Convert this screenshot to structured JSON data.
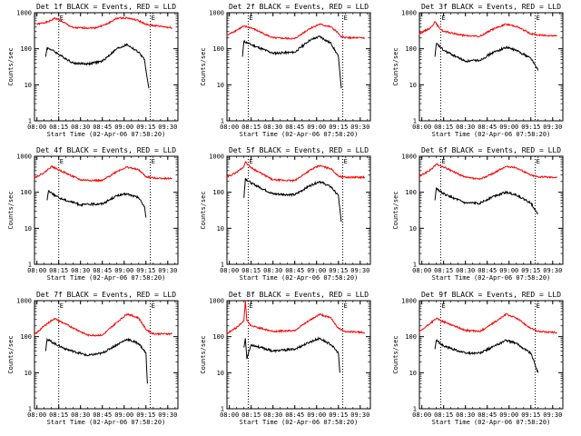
{
  "chart_data": [
    {
      "type": "line",
      "title": "Det 1f BLACK = Events, RED = LLD",
      "xlabel": "Start Time (02-Apr-06 07:58:20)",
      "ylabel": "Counts/sec",
      "xticks": [
        "08:00",
        "08:15",
        "08:30",
        "08:45",
        "09:00",
        "09:15",
        "09:30"
      ],
      "yticks": [
        "1",
        "10",
        "100",
        "1000"
      ],
      "yscale": "log",
      "ylim": [
        1,
        1000
      ],
      "xlim": [
        "07:58:20",
        "09:37"
      ],
      "marker_labels": [
        "E",
        "E"
      ],
      "markers": [
        "08:15",
        "09:18"
      ],
      "series": [
        {
          "color": "#ff0000",
          "x": [
            "08:00",
            "08:08",
            "08:12",
            "08:15",
            "08:25",
            "08:40",
            "08:48",
            "08:55",
            "09:02",
            "09:10",
            "09:15",
            "09:18",
            "09:25",
            "09:33"
          ],
          "y": [
            480,
            560,
            700,
            640,
            380,
            380,
            480,
            700,
            720,
            600,
            470,
            450,
            420,
            380
          ]
        },
        {
          "color": "#000000",
          "x": [
            "08:06",
            "08:07",
            "08:10",
            "08:15",
            "08:25",
            "08:35",
            "08:45",
            "08:55",
            "09:02",
            "09:10",
            "09:14",
            "09:15",
            "09:17"
          ],
          "y": [
            60,
            105,
            95,
            70,
            40,
            38,
            45,
            100,
            130,
            80,
            50,
            25,
            8
          ]
        }
      ]
    },
    {
      "type": "line",
      "title": "Det 2f BLACK = Events, RED = LLD",
      "xlabel": "Start Time (02-Apr-06 07:58:20)",
      "ylabel": "Counts/sec",
      "xticks": [
        "08:00",
        "08:15",
        "08:30",
        "08:45",
        "09:00",
        "09:15",
        "09:30"
      ],
      "yticks": [
        "1",
        "10",
        "100",
        "1000"
      ],
      "yscale": "log",
      "ylim": [
        1,
        1000
      ],
      "xlim": [
        "07:58:20",
        "09:37"
      ],
      "marker_labels": [
        "E",
        "E"
      ],
      "markers": [
        "08:13",
        "09:18"
      ],
      "series": [
        {
          "color": "#ff0000",
          "x": [
            "07:58",
            "08:05",
            "08:10",
            "08:15",
            "08:30",
            "08:45",
            "08:55",
            "09:02",
            "09:10",
            "09:15",
            "09:17",
            "09:25",
            "09:33"
          ],
          "y": [
            230,
            330,
            420,
            380,
            200,
            190,
            360,
            480,
            400,
            270,
            210,
            200,
            200
          ]
        },
        {
          "color": "#000000",
          "x": [
            "08:09",
            "08:10",
            "08:15",
            "08:30",
            "08:45",
            "08:55",
            "09:02",
            "09:10",
            "09:15",
            "09:17"
          ],
          "y": [
            60,
            160,
            130,
            75,
            80,
            170,
            220,
            140,
            60,
            8
          ]
        }
      ]
    },
    {
      "type": "line",
      "title": "Det 3f BLACK = Events, RED = LLD",
      "xlabel": "Start Time (02-Apr-06 07:58:20)",
      "ylabel": "Counts/sec",
      "xticks": [
        "08:00",
        "08:15",
        "08:30",
        "08:45",
        "09:00",
        "09:15",
        "09:30"
      ],
      "yticks": [
        "1",
        "10",
        "100",
        "1000"
      ],
      "yscale": "log",
      "ylim": [
        1,
        1000
      ],
      "xlim": [
        "07:58:20",
        "09:37"
      ],
      "marker_labels": [
        "E",
        "E"
      ],
      "markers": [
        "08:13",
        "09:18"
      ],
      "series": [
        {
          "color": "#ff0000",
          "x": [
            "07:58",
            "08:06",
            "08:09",
            "08:12",
            "08:15",
            "08:30",
            "08:40",
            "08:48",
            "08:58",
            "09:05",
            "09:15",
            "09:20",
            "09:33"
          ],
          "y": [
            260,
            380,
            560,
            380,
            300,
            230,
            220,
            340,
            480,
            420,
            260,
            240,
            230
          ]
        },
        {
          "color": "#000000",
          "x": [
            "08:09",
            "08:10",
            "08:15",
            "08:30",
            "08:40",
            "08:48",
            "08:58",
            "09:05",
            "09:15",
            "09:20"
          ],
          "y": [
            60,
            140,
            90,
            45,
            48,
            75,
            110,
            90,
            55,
            25
          ]
        }
      ]
    },
    {
      "type": "line",
      "title": "Det 4f BLACK = Events, RED = LLD",
      "xlabel": "Start Time (02-Apr-06 07:58:20)",
      "ylabel": "Counts/sec",
      "xticks": [
        "08:00",
        "08:15",
        "08:30",
        "08:45",
        "09:00",
        "09:15",
        "09:30"
      ],
      "yticks": [
        "1",
        "10",
        "100",
        "1000"
      ],
      "yscale": "log",
      "ylim": [
        1,
        1000
      ],
      "xlim": [
        "07:58:20",
        "09:37"
      ],
      "marker_labels": [
        "E",
        "E"
      ],
      "markers": [
        "08:15",
        "09:18"
      ],
      "series": [
        {
          "color": "#ff0000",
          "x": [
            "07:58",
            "08:05",
            "08:10",
            "08:15",
            "08:30",
            "08:45",
            "08:55",
            "09:02",
            "09:10",
            "09:15",
            "09:20",
            "09:33"
          ],
          "y": [
            250,
            350,
            520,
            420,
            220,
            210,
            380,
            500,
            420,
            270,
            250,
            240
          ]
        },
        {
          "color": "#000000",
          "x": [
            "08:07",
            "08:08",
            "08:15",
            "08:30",
            "08:45",
            "08:55",
            "09:02",
            "09:10",
            "09:14",
            "09:15"
          ],
          "y": [
            60,
            110,
            70,
            45,
            48,
            80,
            90,
            70,
            40,
            20
          ]
        }
      ]
    },
    {
      "type": "line",
      "title": "Det 5f BLACK = Events, RED = LLD",
      "xlabel": "Start Time (02-Apr-06 07:58:20)",
      "ylabel": "Counts/sec",
      "xticks": [
        "08:00",
        "08:15",
        "08:30",
        "08:45",
        "09:00",
        "09:15",
        "09:30"
      ],
      "yticks": [
        "1",
        "10",
        "100",
        "1000"
      ],
      "yscale": "log",
      "ylim": [
        1,
        1000
      ],
      "xlim": [
        "07:58:20",
        "09:37"
      ],
      "marker_labels": [
        "E",
        "E"
      ],
      "markers": [
        "08:13",
        "09:18"
      ],
      "series": [
        {
          "color": "#ff0000",
          "x": [
            "07:58",
            "08:05",
            "08:10",
            "08:11",
            "08:15",
            "08:30",
            "08:45",
            "08:55",
            "09:02",
            "09:10",
            "09:15",
            "09:20",
            "09:33"
          ],
          "y": [
            260,
            360,
            520,
            700,
            480,
            220,
            210,
            400,
            550,
            450,
            280,
            260,
            260
          ]
        },
        {
          "color": "#000000",
          "x": [
            "08:10",
            "08:11",
            "08:15",
            "08:30",
            "08:45",
            "08:55",
            "09:02",
            "09:10",
            "09:15",
            "09:17"
          ],
          "y": [
            70,
            240,
            180,
            90,
            85,
            150,
            200,
            140,
            80,
            15
          ]
        }
      ]
    },
    {
      "type": "line",
      "title": "Det 6f BLACK = Events, RED = LLD",
      "xlabel": "Start Time (02-Apr-06 07:58:20)",
      "ylabel": "Counts/sec",
      "xticks": [
        "08:00",
        "08:15",
        "08:30",
        "08:45",
        "09:00",
        "09:15",
        "09:30"
      ],
      "yticks": [
        "1",
        "10",
        "100",
        "1000"
      ],
      "yscale": "log",
      "ylim": [
        1,
        1000
      ],
      "xlim": [
        "07:58:20",
        "09:37"
      ],
      "marker_labels": [
        "E",
        "E"
      ],
      "markers": [
        "08:13",
        "09:18"
      ],
      "series": [
        {
          "color": "#ff0000",
          "x": [
            "07:58",
            "08:06",
            "08:10",
            "08:15",
            "08:30",
            "08:40",
            "08:50",
            "08:58",
            "09:05",
            "09:15",
            "09:20",
            "09:33"
          ],
          "y": [
            270,
            420,
            600,
            500,
            260,
            230,
            350,
            520,
            480,
            300,
            270,
            260
          ]
        },
        {
          "color": "#000000",
          "x": [
            "08:09",
            "08:10",
            "08:15",
            "08:30",
            "08:40",
            "08:50",
            "08:58",
            "09:05",
            "09:15",
            "09:20"
          ],
          "y": [
            60,
            130,
            90,
            50,
            50,
            80,
            100,
            85,
            50,
            25
          ]
        }
      ]
    },
    {
      "type": "line",
      "title": "Det 7f BLACK = Events, RED = LLD",
      "xlabel": "Start Time (02-Apr-06 07:58:20)",
      "ylabel": "Counts/sec",
      "xticks": [
        "08:00",
        "08:15",
        "08:30",
        "08:45",
        "09:00",
        "09:15",
        "09:30"
      ],
      "yticks": [
        "1",
        "10",
        "100",
        "1000"
      ],
      "yscale": "log",
      "ylim": [
        1,
        1000
      ],
      "xlim": [
        "07:58:20",
        "09:37"
      ],
      "marker_labels": [
        "E",
        "E"
      ],
      "markers": [
        "08:15",
        "09:18"
      ],
      "series": [
        {
          "color": "#ff0000",
          "x": [
            "07:58",
            "08:05",
            "08:12",
            "08:20",
            "08:35",
            "08:45",
            "08:55",
            "09:02",
            "09:10",
            "09:15",
            "09:20",
            "09:33"
          ],
          "y": [
            110,
            200,
            320,
            220,
            110,
            110,
            250,
            430,
            330,
            160,
            120,
            120
          ]
        },
        {
          "color": "#000000",
          "x": [
            "08:06",
            "08:07",
            "08:12",
            "08:20",
            "08:35",
            "08:45",
            "08:55",
            "09:02",
            "09:10",
            "09:15",
            "09:16"
          ],
          "y": [
            40,
            85,
            65,
            45,
            30,
            35,
            60,
            85,
            65,
            35,
            5
          ]
        }
      ]
    },
    {
      "type": "line",
      "title": "Det 8f BLACK = Events, RED = LLD",
      "xlabel": "Start Time (02-Apr-06 07:58:20)",
      "ylabel": "Counts/sec",
      "xticks": [
        "08:00",
        "08:15",
        "08:30",
        "08:45",
        "09:00",
        "09:15",
        "09:30"
      ],
      "yticks": [
        "1",
        "10",
        "100",
        "1000"
      ],
      "yscale": "log",
      "ylim": [
        1,
        1000
      ],
      "xlim": [
        "07:58:20",
        "09:37"
      ],
      "marker_labels": [
        "E",
        "E"
      ],
      "markers": [
        "08:13",
        "09:18"
      ],
      "series": [
        {
          "color": "#ff0000",
          "x": [
            "07:58",
            "08:05",
            "08:10",
            "08:11",
            "08:12",
            "08:15",
            "08:30",
            "08:45",
            "08:55",
            "09:02",
            "09:10",
            "09:15",
            "09:20",
            "09:33"
          ],
          "y": [
            120,
            180,
            280,
            1000,
            280,
            200,
            140,
            150,
            280,
            420,
            330,
            170,
            140,
            130
          ]
        },
        {
          "color": "#000000",
          "x": [
            "08:10",
            "08:11",
            "08:12",
            "08:15",
            "08:30",
            "08:45",
            "08:55",
            "09:02",
            "09:10",
            "09:15",
            "09:16"
          ],
          "y": [
            50,
            90,
            25,
            60,
            40,
            45,
            70,
            90,
            60,
            35,
            10
          ]
        }
      ]
    },
    {
      "type": "line",
      "title": "Det 9f BLACK = Events, RED = LLD",
      "xlabel": "Start Time (02-Apr-06 07:58:20)",
      "ylabel": "Counts/sec",
      "xticks": [
        "08:00",
        "08:15",
        "08:30",
        "08:45",
        "09:00",
        "09:15",
        "09:30"
      ],
      "yticks": [
        "1",
        "10",
        "100",
        "1000"
      ],
      "yscale": "log",
      "ylim": [
        1,
        1000
      ],
      "xlim": [
        "07:58:20",
        "09:37"
      ],
      "marker_labels": [
        "E",
        "E"
      ],
      "markers": [
        "08:13",
        "09:18"
      ],
      "series": [
        {
          "color": "#ff0000",
          "x": [
            "07:58",
            "08:06",
            "08:10",
            "08:15",
            "08:30",
            "08:40",
            "08:50",
            "08:58",
            "09:05",
            "09:15",
            "09:20",
            "09:33"
          ],
          "y": [
            130,
            240,
            320,
            260,
            150,
            140,
            250,
            420,
            330,
            170,
            140,
            130
          ]
        },
        {
          "color": "#000000",
          "x": [
            "08:09",
            "08:10",
            "08:15",
            "08:30",
            "08:40",
            "08:50",
            "08:58",
            "09:05",
            "09:15",
            "09:20"
          ],
          "y": [
            45,
            80,
            55,
            35,
            35,
            55,
            80,
            65,
            35,
            10
          ]
        }
      ]
    }
  ]
}
